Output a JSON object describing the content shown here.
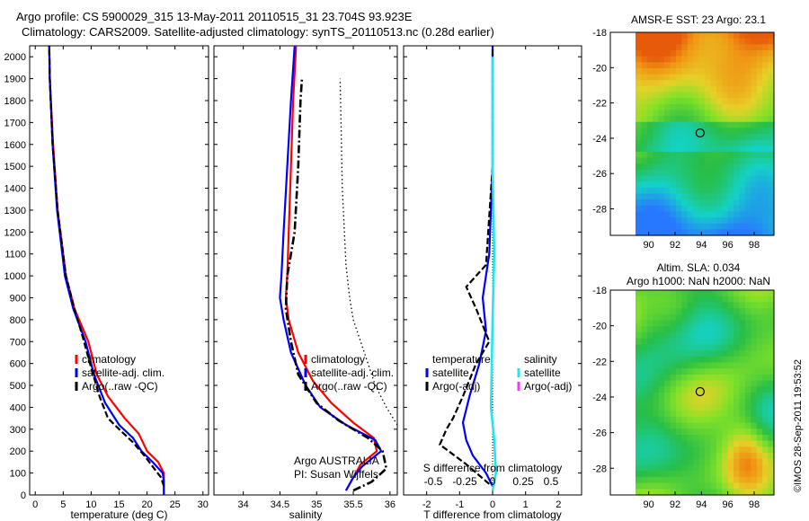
{
  "header": {
    "line1": "Argo profile: CS 5900029_315 13-May-2011 20110515_31 23.704S 93.923E",
    "line2": "Climatology: CARS2009. Satellite-adjusted climatology: synTS_20110513.nc (0.28d earlier)"
  },
  "footer": {
    "credit": "©IMOS 28-Sep-2011 19:53:52"
  },
  "colors": {
    "climatology": "#ff0000",
    "satellite": "#0000ff",
    "argo": "#000000",
    "sal_satellite": "#22e8e8",
    "sal_argo": "#ff33ff"
  },
  "chart_data": [
    {
      "type": "line",
      "xlabel": "temperature (deg C)",
      "ylabel": "",
      "xlim": [
        -1,
        31
      ],
      "ylim": [
        2050,
        0
      ],
      "xticks": [
        0,
        5,
        10,
        15,
        20,
        25,
        30
      ],
      "yticks": [
        0,
        100,
        200,
        300,
        400,
        500,
        600,
        700,
        800,
        900,
        1000,
        1100,
        1200,
        1300,
        1400,
        1500,
        1600,
        1700,
        1800,
        1900,
        2000
      ],
      "legend": [
        "climatology",
        "satellite-adj. clim.",
        "Argo(..raw -QC)"
      ],
      "series": [
        {
          "name": "climatology",
          "points": [
            [
              23,
              0
            ],
            [
              23,
              100
            ],
            [
              22,
              150
            ],
            [
              20,
              200
            ],
            [
              18.5,
              280
            ],
            [
              16,
              350
            ],
            [
              13,
              450
            ],
            [
              11,
              550
            ],
            [
              9.5,
              700
            ],
            [
              7,
              850
            ],
            [
              5.5,
              1000
            ],
            [
              4,
              1300
            ],
            [
              3.2,
              1600
            ],
            [
              2.6,
              1900
            ],
            [
              2.5,
              2050
            ]
          ]
        },
        {
          "name": "satellite-adj. clim.",
          "points": [
            [
              23,
              0
            ],
            [
              23,
              60
            ],
            [
              22.8,
              100
            ],
            [
              21,
              150
            ],
            [
              19,
              200
            ],
            [
              17.5,
              260
            ],
            [
              15,
              320
            ],
            [
              12.5,
              420
            ],
            [
              10.5,
              550
            ],
            [
              9,
              700
            ],
            [
              6.8,
              850
            ],
            [
              5.3,
              1000
            ],
            [
              3.9,
              1300
            ],
            [
              3.1,
              1600
            ],
            [
              2.6,
              1900
            ],
            [
              2.5,
              2050
            ]
          ]
        },
        {
          "name": "Argo(..raw -QC)",
          "points": [
            [
              23,
              40
            ],
            [
              22.5,
              80
            ],
            [
              21,
              130
            ],
            [
              19.5,
              180
            ],
            [
              17.5,
              240
            ],
            [
              15,
              300
            ],
            [
              13,
              350
            ],
            [
              11.5,
              450
            ],
            [
              10,
              580
            ],
            [
              8.5,
              720
            ],
            [
              7,
              850
            ],
            [
              5.5,
              1000
            ],
            [
              4,
              1300
            ],
            [
              3.1,
              1600
            ],
            [
              2.6,
              1900
            ],
            [
              2.5,
              2050
            ]
          ]
        }
      ]
    },
    {
      "type": "line",
      "xlabel": "salinity",
      "xlim": [
        33.6,
        36.1
      ],
      "ylim": [
        2050,
        0
      ],
      "xticks": [
        34,
        34.5,
        35,
        35.5,
        36
      ],
      "legend": [
        "climatology",
        "satellite-adj. clim.",
        "Argo(..raw -QC)"
      ],
      "annotations": [
        "Argo AUSTRALIA",
        "PI: Susan Wijffels"
      ],
      "series": [
        {
          "name": "climatology",
          "points": [
            [
              35.4,
              20
            ],
            [
              35.5,
              80
            ],
            [
              35.6,
              140
            ],
            [
              35.82,
              200
            ],
            [
              35.78,
              260
            ],
            [
              35.5,
              330
            ],
            [
              35.2,
              420
            ],
            [
              34.95,
              520
            ],
            [
              34.75,
              650
            ],
            [
              34.62,
              800
            ],
            [
              34.58,
              900
            ],
            [
              34.6,
              1000
            ],
            [
              34.62,
              1200
            ],
            [
              34.65,
              1500
            ],
            [
              34.68,
              1800
            ],
            [
              34.72,
              2050
            ]
          ]
        },
        {
          "name": "satellite-adj. clim.",
          "points": [
            [
              35.4,
              20
            ],
            [
              35.5,
              80
            ],
            [
              35.62,
              130
            ],
            [
              35.88,
              200
            ],
            [
              35.8,
              250
            ],
            [
              35.4,
              320
            ],
            [
              35.05,
              400
            ],
            [
              34.85,
              500
            ],
            [
              34.65,
              650
            ],
            [
              34.55,
              800
            ],
            [
              34.5,
              900
            ],
            [
              34.52,
              1000
            ],
            [
              34.55,
              1200
            ],
            [
              34.6,
              1500
            ],
            [
              34.65,
              1800
            ],
            [
              34.7,
              2050
            ]
          ]
        },
        {
          "name": "Argo(..raw -QC)",
          "points": [
            [
              35.5,
              20
            ],
            [
              35.75,
              60
            ],
            [
              35.95,
              120
            ],
            [
              35.9,
              200
            ],
            [
              35.7,
              260
            ],
            [
              35.3,
              340
            ],
            [
              35.0,
              420
            ],
            [
              34.75,
              550
            ],
            [
              34.65,
              700
            ],
            [
              34.58,
              850
            ],
            [
              34.6,
              1000
            ],
            [
              34.7,
              1200
            ],
            [
              34.75,
              1500
            ],
            [
              34.78,
              1800
            ],
            [
              34.8,
              1900
            ]
          ]
        },
        {
          "name": "dotted",
          "points": [
            [
              36.1,
              320
            ],
            [
              35.95,
              400
            ],
            [
              35.8,
              500
            ],
            [
              35.65,
              650
            ],
            [
              35.5,
              800
            ],
            [
              35.45,
              900
            ],
            [
              35.4,
              1050
            ],
            [
              35.35,
              1400
            ],
            [
              35.32,
              1900
            ]
          ]
        }
      ]
    },
    {
      "type": "line",
      "xlabel": "T difference from climatology",
      "xlim": [
        -2.7,
        2.7
      ],
      "ylim": [
        2050,
        0
      ],
      "xticks": [
        -2,
        -1,
        0,
        1,
        2
      ],
      "top_axis_label": "S difference from climatology",
      "top_axis_ticks": [
        -0.5,
        -0.25,
        0,
        0.25,
        0.5
      ],
      "legend_groups": [
        {
          "title": "temperature",
          "entries": [
            "satellite",
            "Argo(-adj)"
          ]
        },
        {
          "title": "salinity",
          "entries": [
            "satellite",
            "Argo(-adj)"
          ]
        }
      ],
      "series": [
        {
          "name": "temperature satellite",
          "points": [
            [
              0,
              40
            ],
            [
              -0.2,
              100
            ],
            [
              -0.6,
              180
            ],
            [
              -0.8,
              250
            ],
            [
              -0.9,
              330
            ],
            [
              -0.7,
              450
            ],
            [
              -0.4,
              600
            ],
            [
              -0.2,
              750
            ],
            [
              -0.3,
              900
            ],
            [
              -0.1,
              1100
            ],
            [
              0,
              1500
            ],
            [
              0,
              2050
            ]
          ]
        },
        {
          "name": "temperature Argo(-adj)",
          "points": [
            [
              -0.1,
              50
            ],
            [
              -0.8,
              140
            ],
            [
              -1.6,
              230
            ],
            [
              -1.4,
              300
            ],
            [
              -1.2,
              350
            ],
            [
              -0.9,
              450
            ],
            [
              -0.5,
              600
            ],
            [
              -0.1,
              700
            ],
            [
              -0.5,
              850
            ],
            [
              -0.8,
              950
            ],
            [
              -0.2,
              1050
            ],
            [
              0,
              1500
            ],
            [
              0,
              2050
            ]
          ]
        },
        {
          "name": "salinity satellite",
          "points": [
            [
              0,
              20
            ],
            [
              0.05,
              60
            ],
            [
              0.1,
              100
            ],
            [
              0.05,
              250
            ],
            [
              -0.05,
              400
            ],
            [
              0,
              800
            ],
            [
              0.05,
              1100
            ],
            [
              0,
              1500
            ],
            [
              0,
              2000
            ]
          ]
        },
        {
          "name": "salinity Argo(-adj)",
          "points": []
        }
      ]
    },
    {
      "type": "heatmap",
      "title": "AMSR-E SST: 23 Argo: 23.1",
      "xlim": [
        89,
        99.5
      ],
      "ylim": [
        -29.5,
        -18
      ],
      "xticks": [
        90,
        92,
        94,
        96,
        98
      ],
      "yticks": [
        -18,
        -20,
        -22,
        -24,
        -26,
        -28
      ],
      "marker": [
        93.9,
        -23.7
      ]
    },
    {
      "type": "heatmap",
      "title": "Altim. SLA: 0.034",
      "subtitle": "Argo h1000: NaN h2000: NaN",
      "xlim": [
        89,
        99.5
      ],
      "ylim": [
        -29.5,
        -18
      ],
      "xticks": [
        90,
        92,
        94,
        96,
        98
      ],
      "yticks": [
        -18,
        -20,
        -22,
        -24,
        -26,
        -28
      ],
      "marker": [
        93.9,
        -23.7
      ]
    }
  ]
}
